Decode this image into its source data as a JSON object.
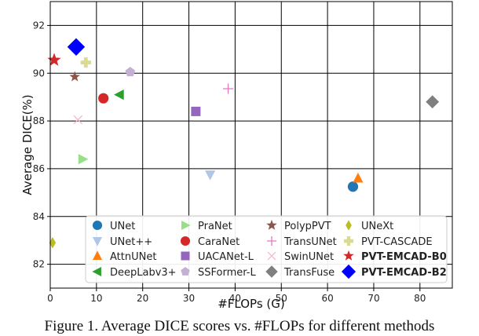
{
  "chart_data": {
    "type": "scatter",
    "xlabel": "#FLOPs (G)",
    "ylabel": "Average DICE(%)",
    "xlim": [
      0,
      87
    ],
    "ylim": [
      81,
      93
    ],
    "xticks": [
      0,
      10,
      20,
      30,
      40,
      50,
      60,
      70,
      80
    ],
    "yticks": [
      82,
      84,
      86,
      88,
      90,
      92
    ],
    "grid": true,
    "legend_position": "lower-center",
    "series": [
      {
        "name": "UNet",
        "marker": "circle",
        "color": "#1f77b4",
        "x": 65.5,
        "y": 85.25
      },
      {
        "name": "UNet++",
        "marker": "triangle-down",
        "color": "#aec7e8",
        "x": 34.6,
        "y": 85.75
      },
      {
        "name": "AttnUNet",
        "marker": "triangle-up",
        "color": "#ff7f0e",
        "x": 66.6,
        "y": 85.6
      },
      {
        "name": "DeepLabv3+",
        "marker": "triangle-left",
        "color": "#2ca02c",
        "x": 15.0,
        "y": 89.1
      },
      {
        "name": "PraNet",
        "marker": "triangle-right",
        "color": "#98df8a",
        "x": 7.0,
        "y": 86.4
      },
      {
        "name": "CaraNet",
        "marker": "circle",
        "color": "#d62728",
        "x": 11.5,
        "y": 88.95
      },
      {
        "name": "UACANet-L",
        "marker": "square",
        "color": "#9467bd",
        "x": 31.5,
        "y": 88.4
      },
      {
        "name": "SSFormer-L",
        "marker": "pentagon",
        "color": "#c5b0d5",
        "x": 17.3,
        "y": 90.05
      },
      {
        "name": "PolypPVT",
        "marker": "star",
        "color": "#8c564b",
        "x": 5.3,
        "y": 89.85
      },
      {
        "name": "TransUNet",
        "marker": "plus",
        "color": "#e377c2",
        "x": 38.5,
        "y": 89.35
      },
      {
        "name": "SwinUNet",
        "marker": "x",
        "color": "#f7b6d2",
        "x": 6.0,
        "y": 88.05
      },
      {
        "name": "TransFuse",
        "marker": "diamond",
        "color": "#7f7f7f",
        "x": 82.7,
        "y": 88.8
      },
      {
        "name": "UNeXt",
        "marker": "thin-diamond",
        "color": "#bcbd22",
        "x": 0.5,
        "y": 82.9
      },
      {
        "name": "PVT-CASCADE",
        "marker": "plus-filled",
        "color": "#dbdb8d",
        "x": 7.7,
        "y": 90.45
      },
      {
        "name": "PVT-EMCAD-B0",
        "marker": "star",
        "color": "#d62728",
        "x": 0.85,
        "y": 90.55
      },
      {
        "name": "PVT-EMCAD-B2",
        "marker": "diamond",
        "color": "#0000ff",
        "x": 5.6,
        "y": 91.1
      }
    ],
    "legend_bold": [
      "PVT-EMCAD-B0",
      "PVT-EMCAD-B2"
    ]
  },
  "caption": "Figure 1. Average DICE scores vs. #FLOPs for different methods"
}
